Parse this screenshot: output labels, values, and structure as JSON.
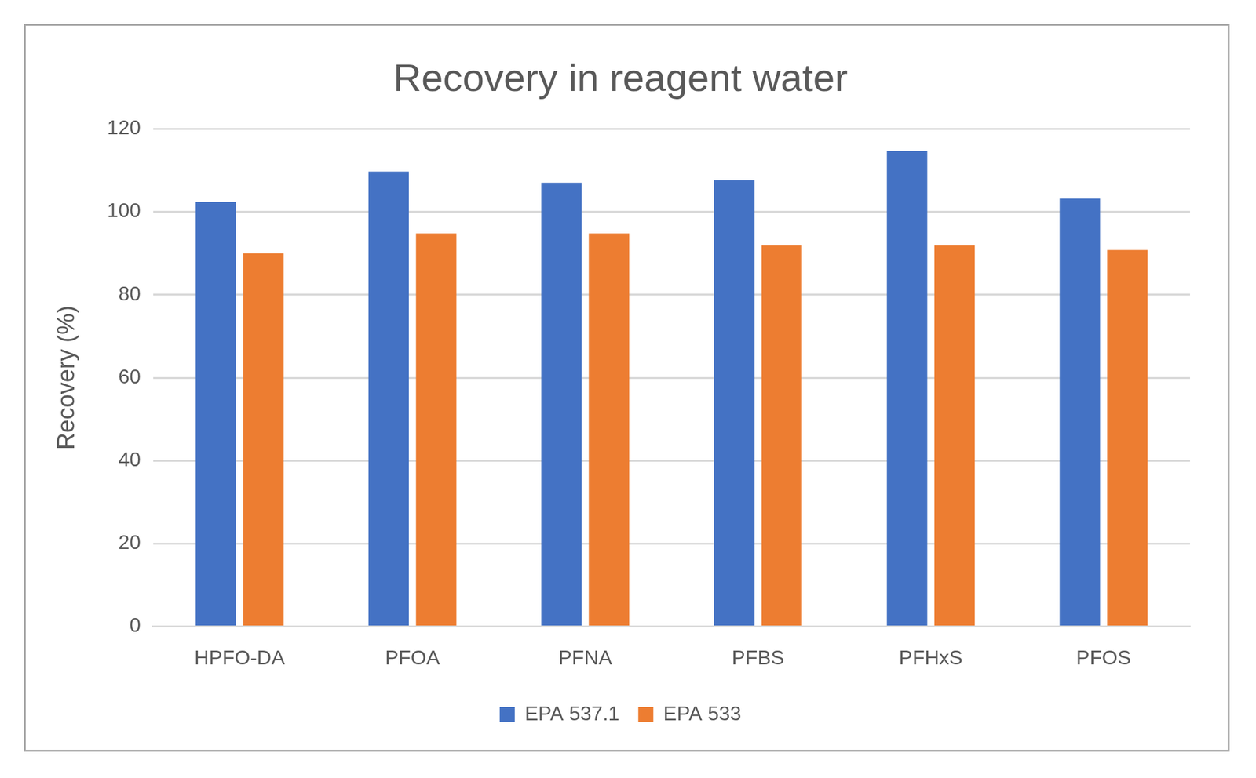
{
  "chart_data": {
    "type": "bar",
    "title": "Recovery in reagent water",
    "y_label": "Recovery (%)",
    "categories": [
      "HPFO-DA",
      "PFOA",
      "PFNA",
      "PFBS",
      "PFHxS",
      "PFOS"
    ],
    "series": [
      {
        "name": "EPA 537.1",
        "color": "#4472c4",
        "values": [
          102.4,
          109.7,
          107.0,
          107.6,
          114.6,
          103.2
        ]
      },
      {
        "name": "EPA 533",
        "color": "#ed7d31",
        "values": [
          90.0,
          94.8,
          94.8,
          91.9,
          91.9,
          90.8
        ]
      }
    ],
    "ylim": [
      0,
      120
    ],
    "yticks": [
      0,
      20,
      40,
      60,
      80,
      100,
      120
    ],
    "grid": true,
    "legend": "bottom"
  }
}
